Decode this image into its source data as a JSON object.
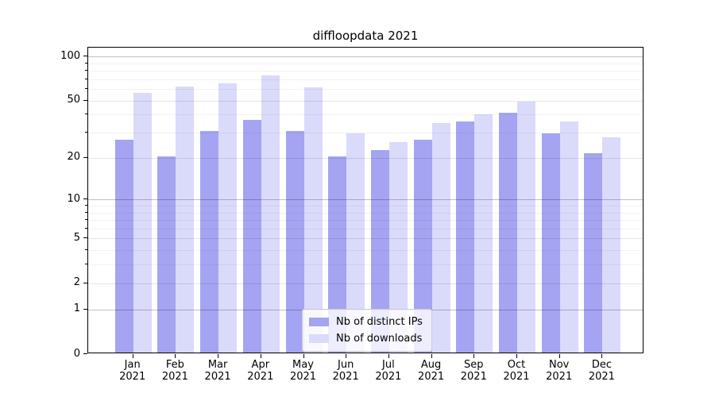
{
  "title": "diffloopdata 2021",
  "colors": {
    "distinct_ips": "#a4a4f2",
    "downloads": "#dadafa",
    "axis": "#000000",
    "grid_major": "rgba(0,0,0,0.24)",
    "grid_labeled": "rgba(0,0,0,0.10)",
    "grid_minor": "rgba(0,0,0,0.05)",
    "legend_border": "#cccccc"
  },
  "legend": {
    "items": [
      {
        "label": "Nb of distinct IPs"
      },
      {
        "label": "Nb of downloads"
      }
    ]
  },
  "chart_data": {
    "type": "bar",
    "title": "diffloopdata 2021",
    "categories": [
      "Jan",
      "Feb",
      "Mar",
      "Apr",
      "May",
      "Jun",
      "Jul",
      "Aug",
      "Sep",
      "Oct",
      "Nov",
      "Dec"
    ],
    "category_year": "2021",
    "series": [
      {
        "name": "Nb of distinct IPs",
        "color": "#a4a4f2",
        "values": [
          26,
          20,
          30,
          36,
          30,
          20,
          22,
          26,
          35,
          40,
          29,
          21
        ]
      },
      {
        "name": "Nb of downloads",
        "color": "#dadafa",
        "values": [
          55,
          61,
          64,
          72,
          60,
          29,
          25,
          34,
          39,
          48,
          35,
          27
        ]
      }
    ],
    "xlabel": "",
    "ylabel": "",
    "y_axis": {
      "scale": "log1p",
      "ticks": [
        0,
        1,
        2,
        5,
        10,
        20,
        50,
        100
      ],
      "major_ticks": [
        1,
        10,
        100
      ],
      "minor_ticks": [
        3,
        4,
        6,
        7,
        8,
        9,
        30,
        40,
        60,
        70,
        80,
        90
      ],
      "min": 0,
      "max": 114.7
    },
    "grid": true,
    "legend_position": "lower center"
  }
}
